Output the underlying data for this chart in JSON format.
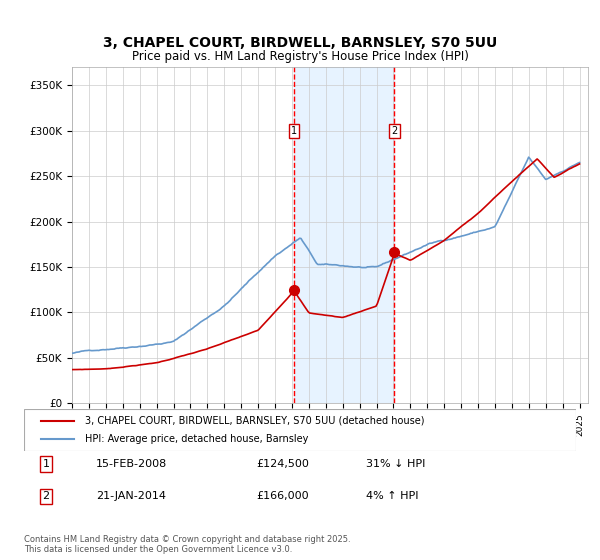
{
  "title_line1": "3, CHAPEL COURT, BIRDWELL, BARNSLEY, S70 5UU",
  "title_line2": "Price paid vs. HM Land Registry's House Price Index (HPI)",
  "legend_label_red": "3, CHAPEL COURT, BIRDWELL, BARNSLEY, S70 5UU (detached house)",
  "legend_label_blue": "HPI: Average price, detached house, Barnsley",
  "transaction1_label": "1",
  "transaction1_date": "15-FEB-2008",
  "transaction1_price": "£124,500",
  "transaction1_hpi": "31% ↓ HPI",
  "transaction2_label": "2",
  "transaction2_date": "21-JAN-2014",
  "transaction2_price": "£166,000",
  "transaction2_hpi": "4% ↑ HPI",
  "footnote": "Contains HM Land Registry data © Crown copyright and database right 2025.\nThis data is licensed under the Open Government Licence v3.0.",
  "color_red": "#cc0000",
  "color_blue": "#6699cc",
  "color_shading": "#ddeeff",
  "color_dashed": "#ff0000",
  "ylim": [
    0,
    370000
  ],
  "yticks": [
    0,
    50000,
    100000,
    150000,
    200000,
    250000,
    300000,
    350000
  ],
  "transaction1_x": 2008.12,
  "transaction2_x": 2014.06,
  "transaction1_price_val": 124500,
  "transaction2_price_val": 166000
}
